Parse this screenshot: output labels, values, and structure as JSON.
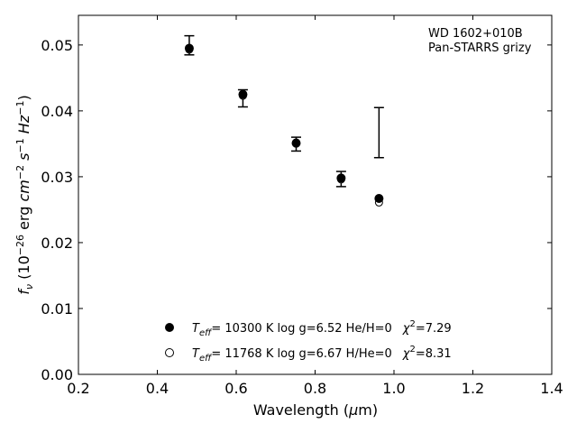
{
  "chart_data": {
    "type": "scatter",
    "xlabel": "Wavelength (μm)",
    "ylabel": "f_ν (10^−26 erg cm^−2 s^−1 Hz^−1)",
    "xlim": [
      0.2,
      1.4
    ],
    "ylim": [
      0.0,
      0.0545
    ],
    "xticks": [
      "0.2",
      "0.4",
      "0.6",
      "0.8",
      "1.0",
      "1.2",
      "1.4"
    ],
    "xtick_values": [
      0.2,
      0.4,
      0.6,
      0.8,
      1.0,
      1.2,
      1.4
    ],
    "yticks": [
      "0.00",
      "0.01",
      "0.02",
      "0.03",
      "0.04",
      "0.05"
    ],
    "ytick_values": [
      0.0,
      0.01,
      0.02,
      0.03,
      0.04,
      0.05
    ],
    "grid": false,
    "annotation": {
      "line1": "WD 1602+010B",
      "line2": "Pan-STARRS grizy",
      "placement": "top-right"
    },
    "observed": {
      "x": [
        0.481,
        0.617,
        0.752,
        0.866,
        0.962
      ],
      "y": [
        0.0493,
        0.0423,
        0.0352,
        0.03,
        0.0367
      ],
      "yerr_low": [
        0.0485,
        0.0406,
        0.0339,
        0.0285,
        0.0329
      ],
      "yerr_high": [
        0.0514,
        0.0432,
        0.036,
        0.0308,
        0.0405
      ]
    },
    "series": [
      {
        "marker": "filled",
        "x": [
          0.481,
          0.617,
          0.752,
          0.866,
          0.962
        ],
        "y": [
          0.0495,
          0.0425,
          0.0351,
          0.0298,
          0.0267
        ]
      },
      {
        "marker": "open",
        "x": [
          0.481,
          0.617,
          0.752,
          0.866,
          0.962
        ],
        "y": [
          0.0493,
          0.0423,
          0.0352,
          0.0296,
          0.0261
        ]
      }
    ],
    "legend": [
      {
        "marker": "filled",
        "teff_value": "= 10300 K  log g=6.52  He/H=0",
        "chi_value": "=7.29"
      },
      {
        "marker": "open",
        "teff_value": "= 11768 K  log g=6.67  H/He=0",
        "chi_value": "=8.31"
      }
    ]
  }
}
